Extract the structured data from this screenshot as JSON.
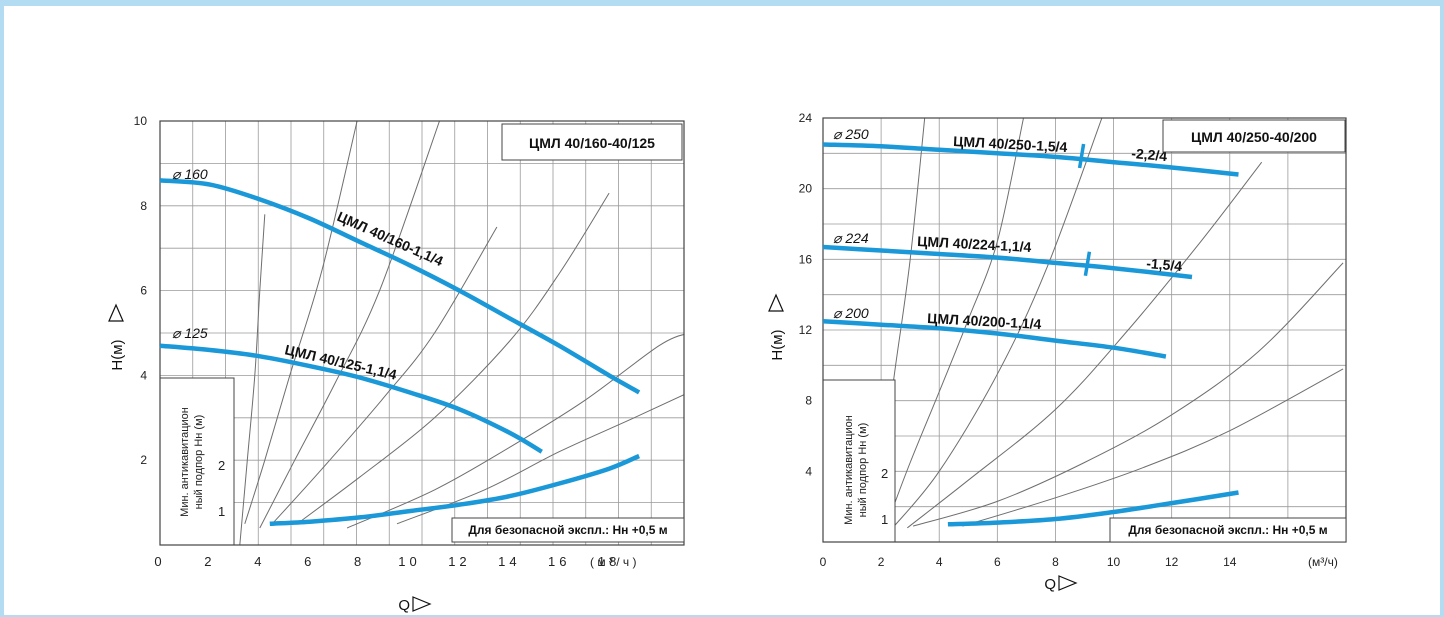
{
  "chart_data": [
    {
      "type": "line",
      "title": "ЦМЛ 40/160-40/125",
      "xlabel": "Q",
      "ylabel": "H(м)",
      "x_unit": "( м ³ / ч )",
      "xlim": [
        0,
        21
      ],
      "ylim": [
        0,
        10
      ],
      "x_ticks": [
        "0",
        "2",
        "4",
        "6",
        "8",
        "10",
        "12",
        "14",
        "16",
        "18"
      ],
      "y_ticks": [
        "2",
        "4",
        "6",
        "8",
        "10"
      ],
      "npsh_label": [
        "Мин. антикавитацион",
        "ный подпор  Hн (м)"
      ],
      "npsh_ticks": [
        "1",
        "2"
      ],
      "note": "Для безопасной экспл.: Hн +0,5 м",
      "series": [
        {
          "name": "ЦМЛ 40/160-1,1/4",
          "diameter": "⌀ 160",
          "x": [
            0,
            2,
            4,
            6,
            8,
            10,
            12,
            14,
            16,
            18,
            19.2
          ],
          "y": [
            8.6,
            8.5,
            8.15,
            7.7,
            7.15,
            6.6,
            6.0,
            5.35,
            4.7,
            4.0,
            3.6
          ]
        },
        {
          "name": "ЦМЛ 40/125-1,1/4",
          "diameter": "⌀ 125",
          "x": [
            0,
            2,
            4,
            6,
            8,
            10,
            12,
            14,
            15.3
          ],
          "y": [
            4.7,
            4.6,
            4.45,
            4.22,
            3.95,
            3.6,
            3.2,
            2.65,
            2.2
          ]
        }
      ],
      "npsh_curve": {
        "x": [
          4.4,
          6,
          8,
          10,
          12,
          14,
          16,
          18,
          19.2
        ],
        "y": [
          0.5,
          0.55,
          0.65,
          0.8,
          0.95,
          1.15,
          1.45,
          1.8,
          2.1
        ]
      },
      "system_curves": [
        {
          "x": [
            3.2,
            3.5,
            3.8,
            4.0,
            4.2
          ],
          "y": [
            0,
            2,
            4,
            6,
            7.8
          ]
        },
        {
          "x": [
            3.4,
            4.2,
            5.2,
            6.5,
            7.9
          ],
          "y": [
            0.5,
            2,
            4,
            6.5,
            10
          ]
        },
        {
          "x": [
            4.0,
            5.4,
            7.0,
            8.8,
            11.2
          ],
          "y": [
            0.4,
            2,
            3.8,
            6,
            10
          ]
        },
        {
          "x": [
            4.5,
            6.5,
            9.0,
            11.0,
            13.5
          ],
          "y": [
            0.5,
            1.8,
            3.5,
            5,
            7.5
          ]
        },
        {
          "x": [
            5.5,
            8.0,
            11.0,
            14.0,
            16.0,
            18.0
          ],
          "y": [
            0.5,
            1.6,
            3.0,
            4.8,
            6.4,
            8.3
          ]
        },
        {
          "x": [
            7.5,
            11.0,
            14.0,
            17.0,
            20.0,
            21.2
          ],
          "y": [
            0.4,
            1.3,
            2.3,
            3.4,
            4.7,
            5.0
          ]
        },
        {
          "x": [
            9.5,
            13.0,
            16.0,
            19.0,
            21.2
          ],
          "y": [
            0.5,
            1.3,
            2.2,
            3.0,
            3.6
          ]
        }
      ]
    },
    {
      "type": "line",
      "title": "ЦМЛ 40/250-40/200",
      "xlabel": "Q",
      "ylabel": "H(м)",
      "x_unit": "(м³/ч)",
      "xlim": [
        0,
        18
      ],
      "ylim": [
        0,
        24
      ],
      "x_ticks": [
        "0",
        "2",
        "4",
        "6",
        "8",
        "10",
        "12",
        "14"
      ],
      "y_ticks": [
        "4",
        "8",
        "12",
        "16",
        "20",
        "24"
      ],
      "npsh_label": [
        "Мин. антикавитацион",
        "ный подпор  Hн (м)"
      ],
      "npsh_ticks": [
        "1",
        "2"
      ],
      "note": "Для безопасной экспл.: Hн +0,5 м",
      "series": [
        {
          "name": "ЦМЛ 40/250-1,5/4",
          "diameter": "⌀ 250",
          "x": [
            0,
            2,
            4,
            6,
            8,
            10,
            12,
            14.3
          ],
          "y": [
            22.5,
            22.4,
            22.2,
            22.0,
            21.8,
            21.5,
            21.2,
            20.8
          ]
        },
        {
          "name": "ЦМЛ 40/224-1,1/4",
          "diameter": "⌀ 224",
          "x": [
            0,
            2,
            4,
            6,
            8,
            10,
            12.7
          ],
          "y": [
            16.7,
            16.5,
            16.3,
            16.1,
            15.8,
            15.5,
            15.0
          ]
        },
        {
          "name": "ЦМЛ 40/200-1,1/4",
          "diameter": "⌀ 200",
          "x": [
            0,
            2,
            4,
            6,
            8,
            10,
            11.8
          ],
          "y": [
            12.5,
            12.3,
            12.1,
            11.8,
            11.4,
            11.0,
            10.5
          ]
        }
      ],
      "split_labels": [
        "-2,2/4",
        "-1,5/4"
      ],
      "split_markers": [
        {
          "x": 8.9,
          "y": 21.85
        },
        {
          "x": 9.1,
          "y": 15.75
        }
      ],
      "npsh_curve": {
        "x": [
          4.3,
          6,
          8,
          10,
          12,
          14.3
        ],
        "y": [
          1.0,
          1.1,
          1.3,
          1.7,
          2.2,
          2.8
        ]
      },
      "system_curves": [
        {
          "x": [
            1.6,
            2.0,
            2.5,
            3.0,
            3.5
          ],
          "y": [
            0,
            4,
            10,
            16,
            24
          ]
        },
        {
          "x": [
            2.2,
            3.0,
            4.0,
            5.0,
            6.0,
            6.9
          ],
          "y": [
            1.0,
            4.5,
            8.5,
            12.6,
            17,
            24
          ]
        },
        {
          "x": [
            2.4,
            4.0,
            6.0,
            7.7,
            9.6
          ],
          "y": [
            0.8,
            4.0,
            9.5,
            15.5,
            24
          ]
        },
        {
          "x": [
            2.9,
            5.0,
            8.0,
            10.5,
            13.0,
            15.1
          ],
          "y": [
            0.8,
            3.5,
            7.5,
            12,
            17,
            21.5
          ]
        },
        {
          "x": [
            3.1,
            6.0,
            9.0,
            12.0,
            15.0,
            17.9
          ],
          "y": [
            0.9,
            2.3,
            4.5,
            7.2,
            10.8,
            15.8
          ]
        },
        {
          "x": [
            4.8,
            8.0,
            11.0,
            14.0,
            17.9
          ],
          "y": [
            0.9,
            2.5,
            4.2,
            6.3,
            9.8
          ]
        }
      ]
    }
  ]
}
